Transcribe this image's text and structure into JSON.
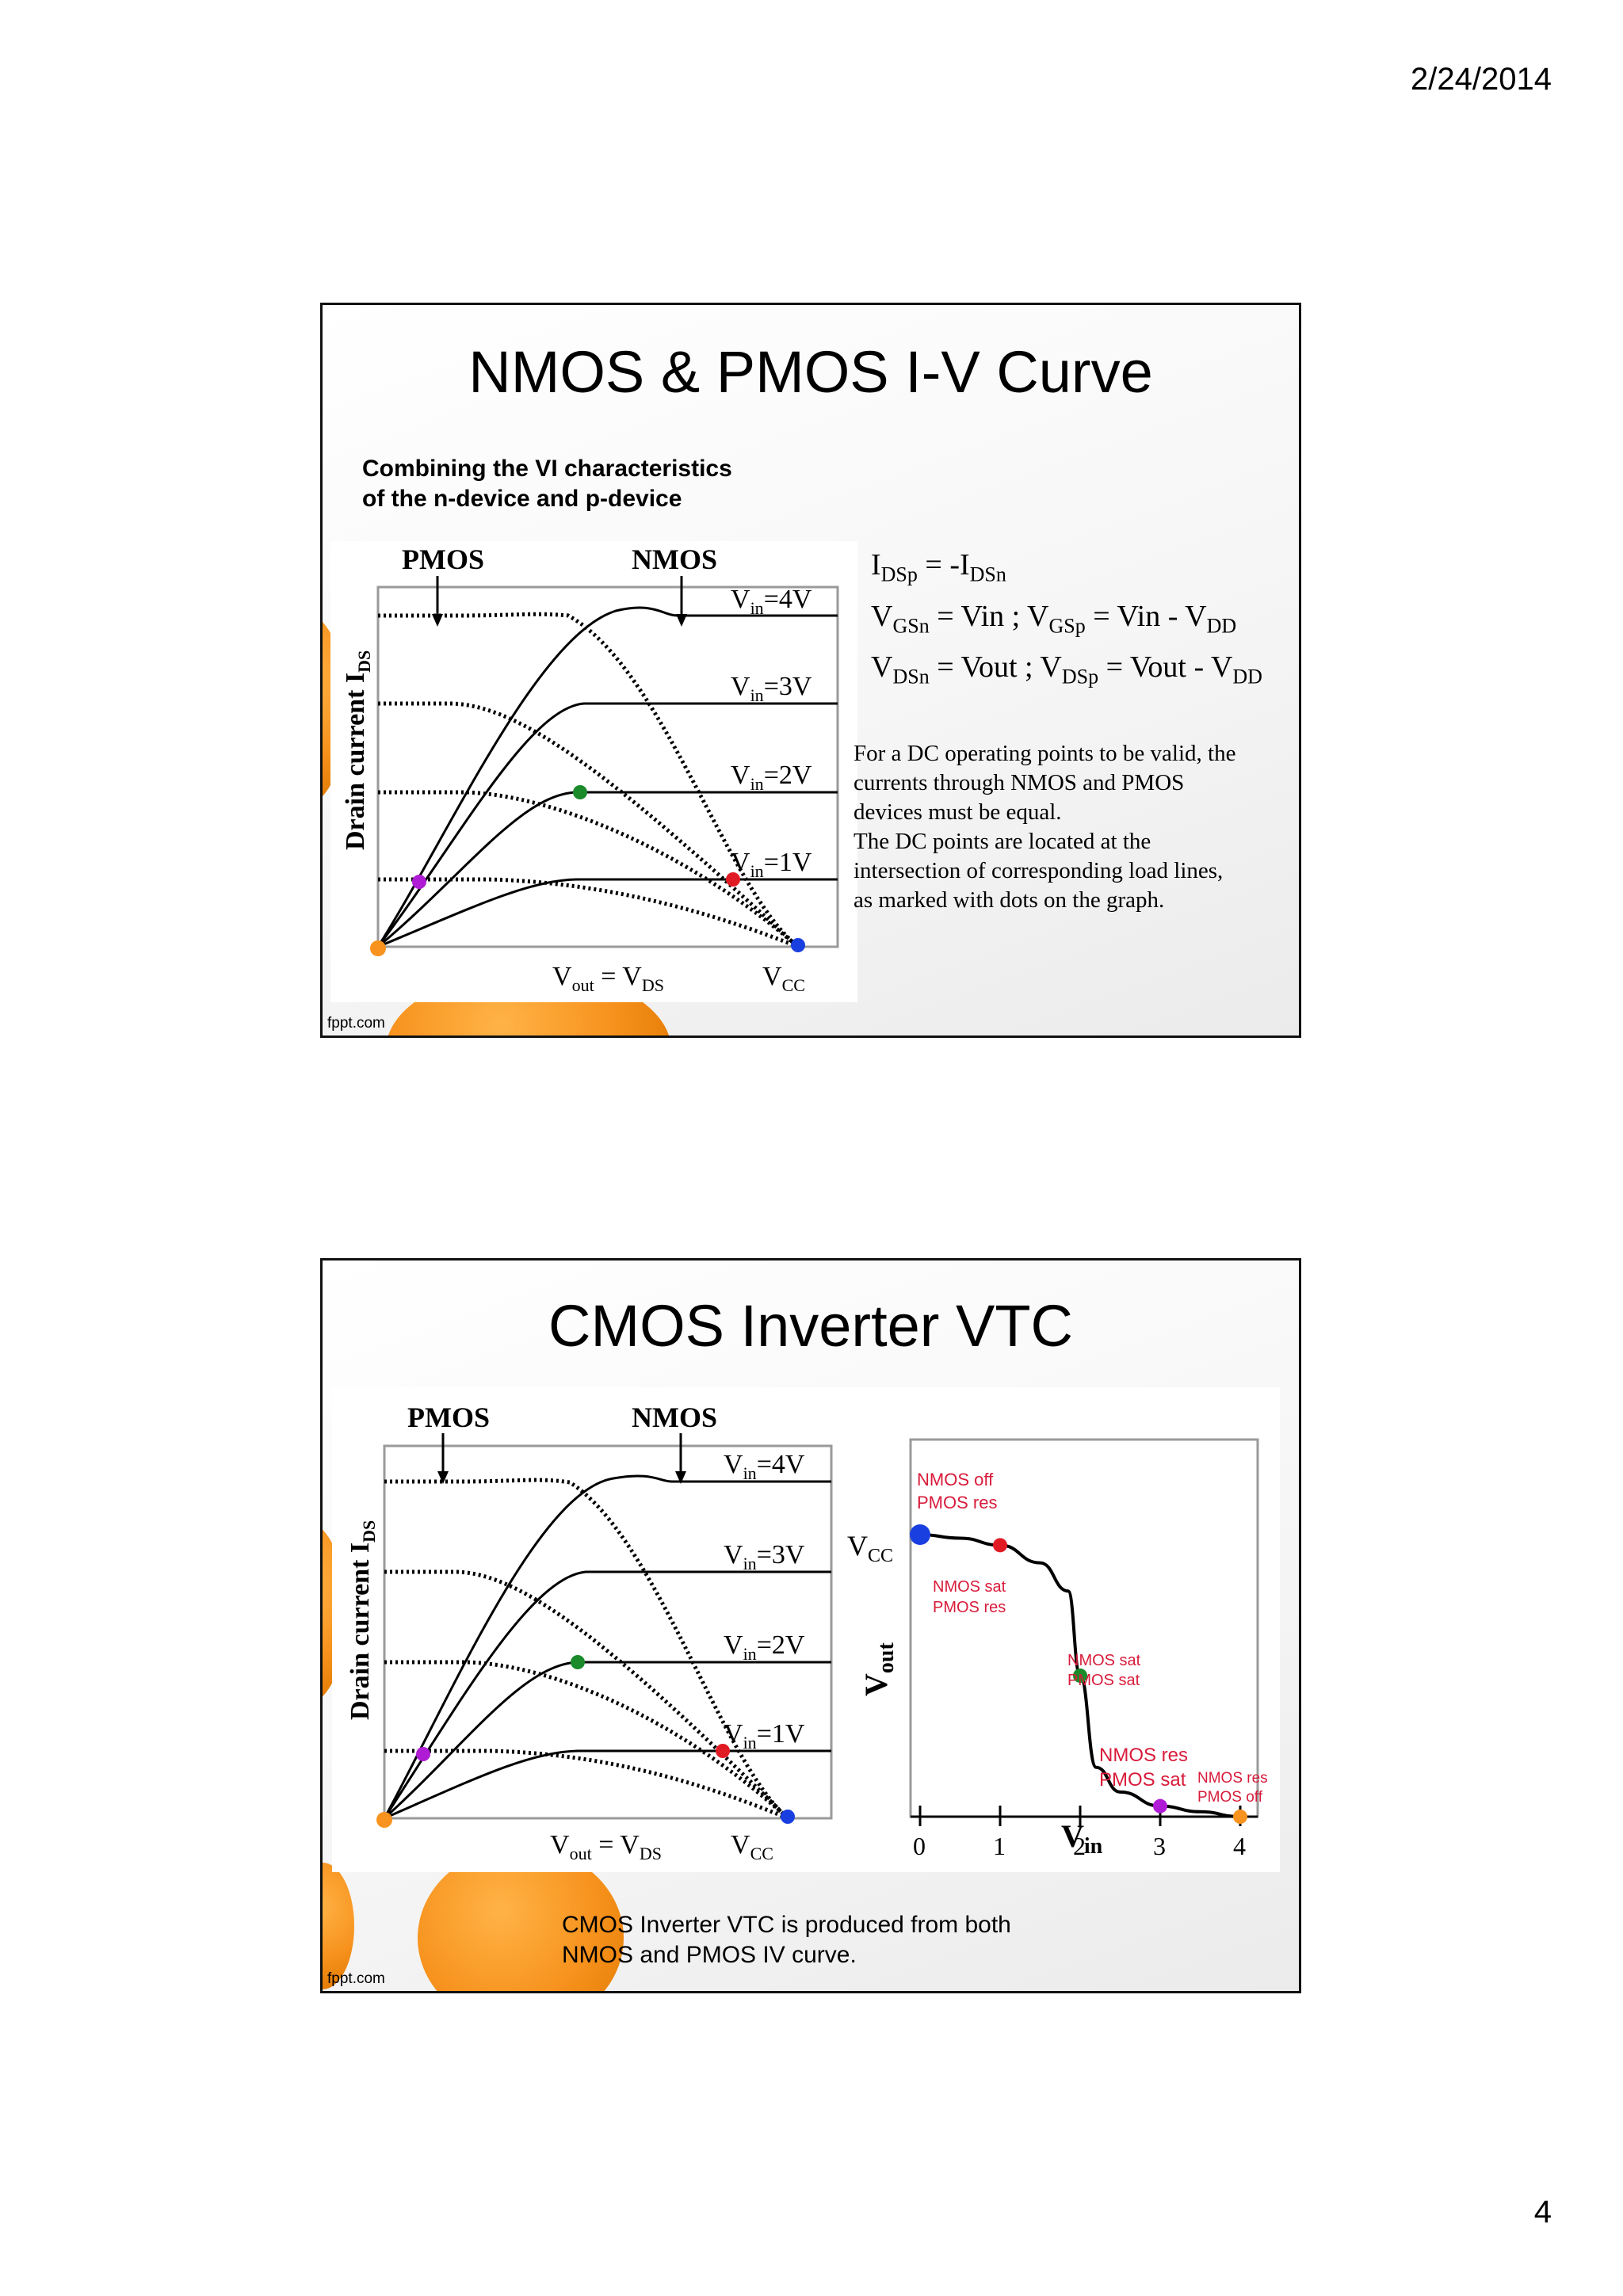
{
  "header": {
    "date": "2/24/2014"
  },
  "footer": {
    "page_number": "4"
  },
  "brand": "fppt.com",
  "colors": {
    "orange": "#f7931e",
    "dot_orange": "#f7931e",
    "dot_purple": "#b01cd6",
    "dot_green": "#1a8a2a",
    "dot_red": "#e01b24",
    "dot_blue": "#1a3fe0",
    "annotation_red": "#d81b3a"
  },
  "iv_plot": {
    "pmos_label": "PMOS",
    "nmos_label": "NMOS",
    "y_axis_label": "Drain current I",
    "y_axis_sub": "DS",
    "x_label": "V",
    "x_label_sub": "out",
    "x_label_eq": " = V",
    "x_label_eq_sub": "DS",
    "vcc": "V",
    "vcc_sub": "CC",
    "vin_prefix": "V",
    "vin_sub": "in",
    "vin_values": [
      "=4V",
      "=3V",
      "=2V",
      "=1V"
    ]
  },
  "slide1": {
    "title": "NMOS & PMOS I-V Curve",
    "subtitle_line1": "Combining the VI characteristics",
    "subtitle_line2": "of the n-device and p-device",
    "eq1": {
      "a": "I",
      "a_sub": "DSp",
      "b": " = -I",
      "b_sub": "DSn"
    },
    "eq2": {
      "a": "V",
      "a_sub": "GSn",
      "b": " = Vin ; V",
      "b_sub": "GSp",
      "c": " = Vin - V",
      "c_sub": "DD"
    },
    "eq3": {
      "a": "V",
      "a_sub": "DSn",
      "b": " = Vout ; V",
      "b_sub": "DSp",
      "c": " = Vout - V",
      "c_sub": "DD"
    },
    "note": [
      "For a DC operating points to be valid, the",
      "currents through NMOS and PMOS",
      "devices must be equal.",
      "The DC points are located at the",
      "intersection of corresponding load lines,",
      "as marked with dots on the graph."
    ]
  },
  "slide2": {
    "title": "CMOS Inverter VTC",
    "caption_line1": "CMOS Inverter VTC is produced from both",
    "caption_line2": "NMOS and PMOS IV curve.",
    "vtc": {
      "y_axis_label": "V",
      "y_axis_sub": "out",
      "vcc": "V",
      "vcc_sub": "CC",
      "x_axis_label": "V",
      "x_axis_sub": "in",
      "ticks": [
        "0",
        "1",
        "2",
        "3",
        "4"
      ],
      "region_labels": [
        [
          "NMOS off",
          "PMOS res"
        ],
        [
          "NMOS sat",
          "PMOS res"
        ],
        [
          "NMOS sat",
          "PMOS sat"
        ],
        [
          "NMOS res",
          "PMOS sat"
        ],
        [
          "NMOS res",
          "PMOS off"
        ]
      ]
    }
  },
  "chart_data": {
    "type": "line",
    "x_axis_label": "Vin",
    "y_axis_label": "Vout",
    "x_ticks": [
      "0",
      "1",
      "2",
      "3",
      "4"
    ],
    "series": [
      {
        "x": [
          0,
          0.5,
          1,
          1.5,
          1.85,
          2,
          2.2,
          2.5,
          3,
          3.5,
          4
        ],
        "y": [
          4,
          3.95,
          3.85,
          3.6,
          3.2,
          2,
          0.7,
          0.35,
          0.15,
          0.07,
          0
        ]
      }
    ],
    "operating_points": [
      {
        "x": 0,
        "y": 4,
        "color": "blue"
      },
      {
        "x": 1,
        "y": 3.85,
        "color": "red"
      },
      {
        "x": 2,
        "y": 2,
        "color": "green"
      },
      {
        "x": 3,
        "y": 0.15,
        "color": "purple"
      },
      {
        "x": 4,
        "y": 0,
        "color": "orange"
      }
    ]
  }
}
